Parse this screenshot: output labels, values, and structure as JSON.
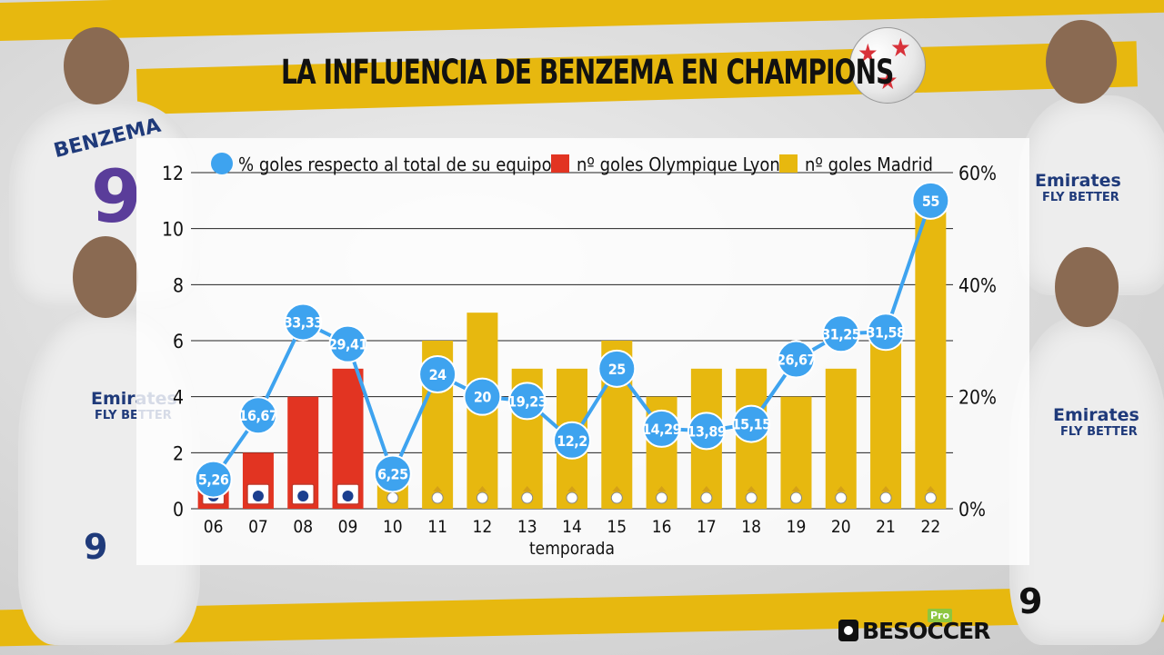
{
  "title": "LA INFLUENCIA DE BENZEMA EN CHAMPIONS",
  "brand": {
    "name": "BESOCCER",
    "badge": "Pro"
  },
  "decor": {
    "jersey_name": "BENZEMA",
    "jersey_number": "9",
    "sponsor_line1": "Emirates",
    "sponsor_line2": "FLY BETTER"
  },
  "colors": {
    "percent_series": "#3ea3ef",
    "lyon_bars": "#e23422",
    "madrid_bars": "#e7b80f",
    "stripe": "#e7b80f"
  },
  "chart_data": {
    "type": "bar",
    "categories": [
      "06",
      "07",
      "08",
      "09",
      "10",
      "11",
      "12",
      "13",
      "14",
      "15",
      "16",
      "17",
      "18",
      "19",
      "20",
      "21",
      "22"
    ],
    "xlabel": "temporada",
    "y_left": {
      "ticks": [
        "0",
        "2",
        "4",
        "6",
        "8",
        "10",
        "12"
      ],
      "range": [
        0,
        12
      ]
    },
    "y_right": {
      "ticks": [
        "0%",
        "20%",
        "40%",
        "60%"
      ],
      "range": [
        0,
        60
      ]
    },
    "legend": [
      "% goles respecto al total de su equipo",
      "nº goles Olympique Lyon",
      "nº goles Madrid"
    ],
    "legend_position": "top",
    "grid": true,
    "series": [
      {
        "name": "nº goles Olympique Lyon",
        "type": "bar",
        "axis": "left",
        "values": [
          1,
          2,
          4,
          5,
          0,
          0,
          0,
          0,
          0,
          0,
          0,
          0,
          0,
          0,
          0,
          0,
          0
        ]
      },
      {
        "name": "nº goles Madrid",
        "type": "bar",
        "axis": "left",
        "values": [
          0,
          0,
          0,
          0,
          1,
          6,
          7,
          5,
          5,
          6,
          4,
          5,
          5,
          4,
          5,
          6,
          11
        ]
      },
      {
        "name": "% goles respecto al total de su equipo",
        "type": "line",
        "axis": "right",
        "values": [
          5.26,
          16.67,
          33.33,
          29.41,
          6.25,
          24,
          20,
          19.23,
          12.2,
          25,
          14.29,
          13.89,
          15.15,
          26.67,
          31.25,
          31.58,
          55
        ],
        "labels": [
          "5,26",
          "16,67",
          "33,33",
          "29,41",
          "6,25",
          "24",
          "20",
          "19,23",
          "12,2",
          "25",
          "14,29",
          "13,89",
          "15,15",
          "26,67",
          "31,25",
          "31,58",
          "55"
        ]
      }
    ],
    "club_badge_per_bar": [
      "OL",
      "OL",
      "OL",
      "OL",
      "RM",
      "RM",
      "RM",
      "RM",
      "RM",
      "RM",
      "RM",
      "RM",
      "RM",
      "RM",
      "RM",
      "RM",
      "RM"
    ]
  }
}
